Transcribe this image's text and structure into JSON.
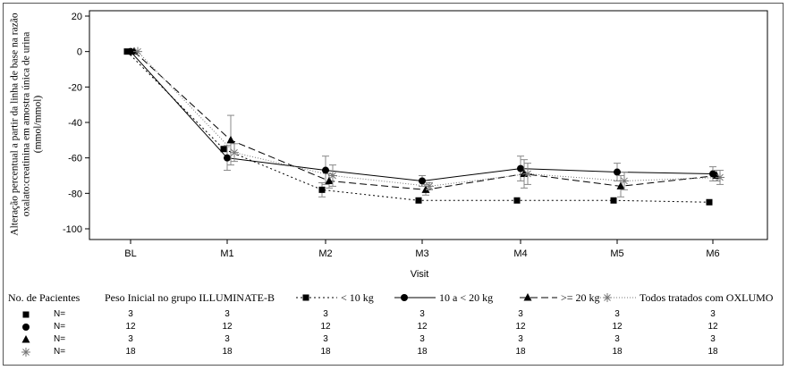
{
  "chart_data": {
    "type": "line",
    "title": "",
    "ylabel": "Alteração percentual a partir da linha de base na razão oxalato:creatinina em amostra única de urina (mmol/mmol)",
    "xlabel": "Visit",
    "categories": [
      "BL",
      "M1",
      "M2",
      "M3",
      "M4",
      "M5",
      "M6"
    ],
    "ylim": [
      -100,
      20
    ],
    "yticks": [
      "20",
      "0",
      "-20",
      "-40",
      "-60",
      "-80",
      "-100"
    ],
    "grid": false,
    "series": [
      {
        "name": "< 10 kg",
        "marker": "square",
        "dash": "dotted",
        "values": [
          0,
          -55,
          -78,
          -84,
          -84,
          -84,
          -85
        ],
        "err": [
          0,
          0,
          4,
          0,
          0,
          0,
          0
        ]
      },
      {
        "name": "10 a < 20 kg",
        "marker": "circle",
        "dash": "solid",
        "values": [
          0,
          -60,
          -67,
          -73,
          -66,
          -68,
          -69
        ],
        "err": [
          0,
          7,
          8,
          3,
          7,
          5,
          4
        ]
      },
      {
        "name": ">= 20 kg",
        "marker": "triangle",
        "dash": "dashed",
        "values": [
          0,
          -50,
          -73,
          -78,
          -69,
          -76,
          -70
        ],
        "err": [
          0,
          14,
          4,
          3,
          8,
          6,
          3
        ]
      },
      {
        "name": "Todos tratados com OXLUMO",
        "marker": "star",
        "dash": "dense-dotted",
        "values": [
          0,
          -57,
          -70,
          -76,
          -69,
          -73,
          -71
        ],
        "err": [
          0,
          5,
          6,
          2,
          6,
          5,
          4
        ]
      }
    ]
  },
  "legend": {
    "count_label": "No. de Pacientes",
    "group_label": "Peso Inicial no grupo ILLUMINATE-B",
    "entries": [
      "< 10 kg",
      "10 a < 20 kg",
      ">= 20 kg",
      "Todos tratados com OXLUMO"
    ]
  },
  "patients": {
    "row_label": "N=",
    "rows": [
      {
        "marker": "square",
        "counts": [
          "3",
          "3",
          "3",
          "3",
          "3",
          "3",
          "3"
        ]
      },
      {
        "marker": "circle",
        "counts": [
          "12",
          "12",
          "12",
          "12",
          "12",
          "12",
          "12"
        ]
      },
      {
        "marker": "triangle",
        "counts": [
          "3",
          "3",
          "3",
          "3",
          "3",
          "3",
          "3"
        ]
      },
      {
        "marker": "star",
        "counts": [
          "18",
          "18",
          "18",
          "18",
          "18",
          "18",
          "18"
        ]
      }
    ]
  }
}
